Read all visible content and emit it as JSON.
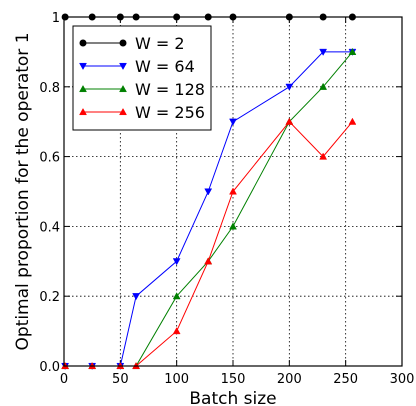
{
  "chart_data": {
    "type": "line",
    "title": "",
    "xlabel": "Batch size",
    "ylabel": "Optimal proportion for the operator 1",
    "xlim": [
      0,
      300
    ],
    "ylim": [
      0.0,
      1.0
    ],
    "xticks": [
      0,
      50,
      100,
      150,
      200,
      250,
      300
    ],
    "yticks": [
      0.0,
      0.2,
      0.4,
      0.6,
      0.8,
      1.0
    ],
    "xtick_labels": [
      "0",
      "50",
      "100",
      "150",
      "200",
      "250",
      "300"
    ],
    "ytick_labels": [
      "0.0",
      "0.2",
      "0.4",
      "0.6",
      "0.8",
      "1"
    ],
    "grid": true,
    "legend_position": "top-left",
    "series": [
      {
        "name": "W = 2",
        "color": "#000000",
        "marker": "circle",
        "x": [
          1,
          25,
          50,
          64,
          100,
          128,
          150,
          200,
          230,
          256
        ],
        "y": [
          1.0,
          1.0,
          1.0,
          1.0,
          1.0,
          1.0,
          1.0,
          1.0,
          1.0,
          1.0
        ]
      },
      {
        "name": "W = 64",
        "color": "#0000ff",
        "marker": "triangle-down",
        "x": [
          1,
          25,
          50,
          64,
          100,
          128,
          150,
          200,
          230,
          256
        ],
        "y": [
          0.0,
          0.0,
          0.0,
          0.2,
          0.3,
          0.5,
          0.7,
          0.8,
          0.9,
          0.9
        ]
      },
      {
        "name": "W = 128",
        "color": "#008000",
        "marker": "triangle-up",
        "x": [
          1,
          25,
          50,
          64,
          100,
          128,
          150,
          200,
          230,
          256
        ],
        "y": [
          0.0,
          0.0,
          0.0,
          0.0,
          0.2,
          0.3,
          0.4,
          0.7,
          0.8,
          0.9
        ]
      },
      {
        "name": "W = 256",
        "color": "#ff0000",
        "marker": "triangle-up",
        "x": [
          1,
          25,
          50,
          64,
          100,
          128,
          150,
          200,
          230,
          256
        ],
        "y": [
          0.0,
          0.0,
          0.0,
          0.0,
          0.1,
          0.3,
          0.5,
          0.7,
          0.6,
          0.7
        ]
      }
    ]
  }
}
